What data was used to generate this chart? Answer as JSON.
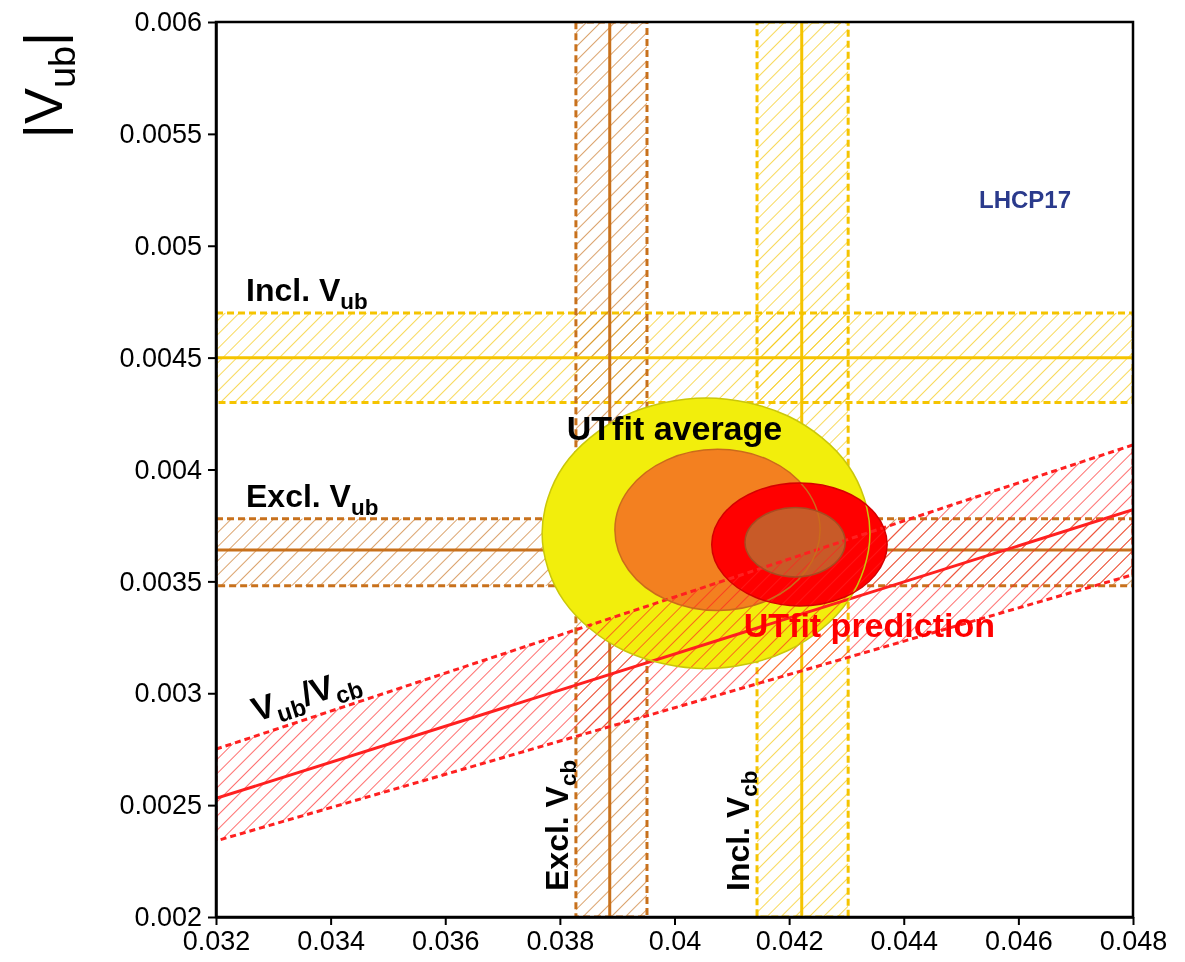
{
  "chart_data": {
    "type": "line",
    "ylabel": "|V$_{ub}$|",
    "xlim": [
      0.032,
      0.048
    ],
    "ylim": [
      0.002,
      0.006
    ],
    "xticks": [
      0.032,
      0.034,
      0.036,
      0.038,
      0.04,
      0.042,
      0.044,
      0.046,
      0.048
    ],
    "yticks": [
      0.002,
      0.0025,
      0.003,
      0.0035,
      0.004,
      0.0045,
      0.005,
      0.0055,
      0.006
    ],
    "grid": false,
    "legend": false,
    "bands": [
      {
        "axis": "y",
        "from": 0.0043,
        "to": 0.0047,
        "label": "Incl. V$_{ub}$",
        "color": "#f5c400"
      },
      {
        "axis": "y",
        "from": 0.00348,
        "to": 0.00378,
        "label": "Excl. V$_{ub}$",
        "color": "#c8711c"
      },
      {
        "axis": "x",
        "from": 0.03828,
        "to": 0.03952,
        "label": "Excl. V$_{cb}$",
        "color": "#c8711c"
      },
      {
        "axis": "x",
        "from": 0.04144,
        "to": 0.04303,
        "label": "Incl. V$_{cb}$",
        "color": "#f5c400"
      }
    ],
    "ref_lines": [
      {
        "axis": "y",
        "value": 0.0045,
        "color": "#f5c400"
      },
      {
        "axis": "y",
        "value": 0.00364,
        "color": "#c8711c"
      },
      {
        "axis": "x",
        "value": 0.03887,
        "color": "#c8711c"
      },
      {
        "axis": "x",
        "value": 0.04222,
        "color": "#f5c400"
      }
    ],
    "series": [
      {
        "type": "area",
        "color": "#f2ee0c",
        "x": [
          0.04341,
          0.04303,
          0.04198,
          0.04055,
          0.03912,
          0.03807,
          0.03769,
          0.03807,
          0.03912,
          0.04055,
          0.04198,
          0.04303
        ],
        "values": [
          0.003715,
          0.004018,
          0.004239,
          0.00432,
          0.004239,
          0.004018,
          0.003715,
          0.003413,
          0.003191,
          0.00311,
          0.003191,
          0.003413
        ]
      },
      {
        "type": "area",
        "color": "#f38020",
        "x": [
          0.04254,
          0.0423,
          0.04165,
          0.04075,
          0.03986,
          0.0392,
          0.03896,
          0.0392,
          0.03986,
          0.04075,
          0.04165,
          0.0423
        ],
        "values": [
          0.00373,
          0.00391,
          0.004042,
          0.00409,
          0.004042,
          0.00391,
          0.00373,
          0.00355,
          0.003418,
          0.00337,
          0.003418,
          0.00355
        ]
      },
      {
        "type": "area",
        "color": "#ff0000",
        "x": [
          0.04371,
          0.0435,
          0.04295,
          0.04218,
          0.04142,
          0.04086,
          0.04065,
          0.04086,
          0.04142,
          0.04218,
          0.04295,
          0.0435
        ],
        "values": [
          0.003665,
          0.003803,
          0.003903,
          0.00394,
          0.003903,
          0.003803,
          0.003665,
          0.003528,
          0.003428,
          0.00339,
          0.003428,
          0.003528
        ]
      },
      {
        "type": "area",
        "color": "#c85a28",
        "x": [
          0.04298,
          0.04286,
          0.04254,
          0.04211,
          0.04167,
          0.04135,
          0.04123,
          0.04135,
          0.04167,
          0.04211,
          0.04254,
          0.04286
        ],
        "values": [
          0.003675,
          0.003753,
          0.003809,
          0.00383,
          0.003809,
          0.003753,
          0.003675,
          0.003598,
          0.003541,
          0.00352,
          0.003541,
          0.003598
        ]
      },
      {
        "name": "V$_{ub}$/V$_{cb}$",
        "color": "#ff2020",
        "x": [
          0.032,
          0.048
        ],
        "values": [
          0.00253,
          0.00382
        ],
        "lower": [
          0.00234,
          0.00353
        ],
        "upper": [
          0.00275,
          0.00411
        ]
      }
    ],
    "annotations": [
      "UTfit average",
      "UTfit prediction",
      "LHCP17"
    ]
  }
}
